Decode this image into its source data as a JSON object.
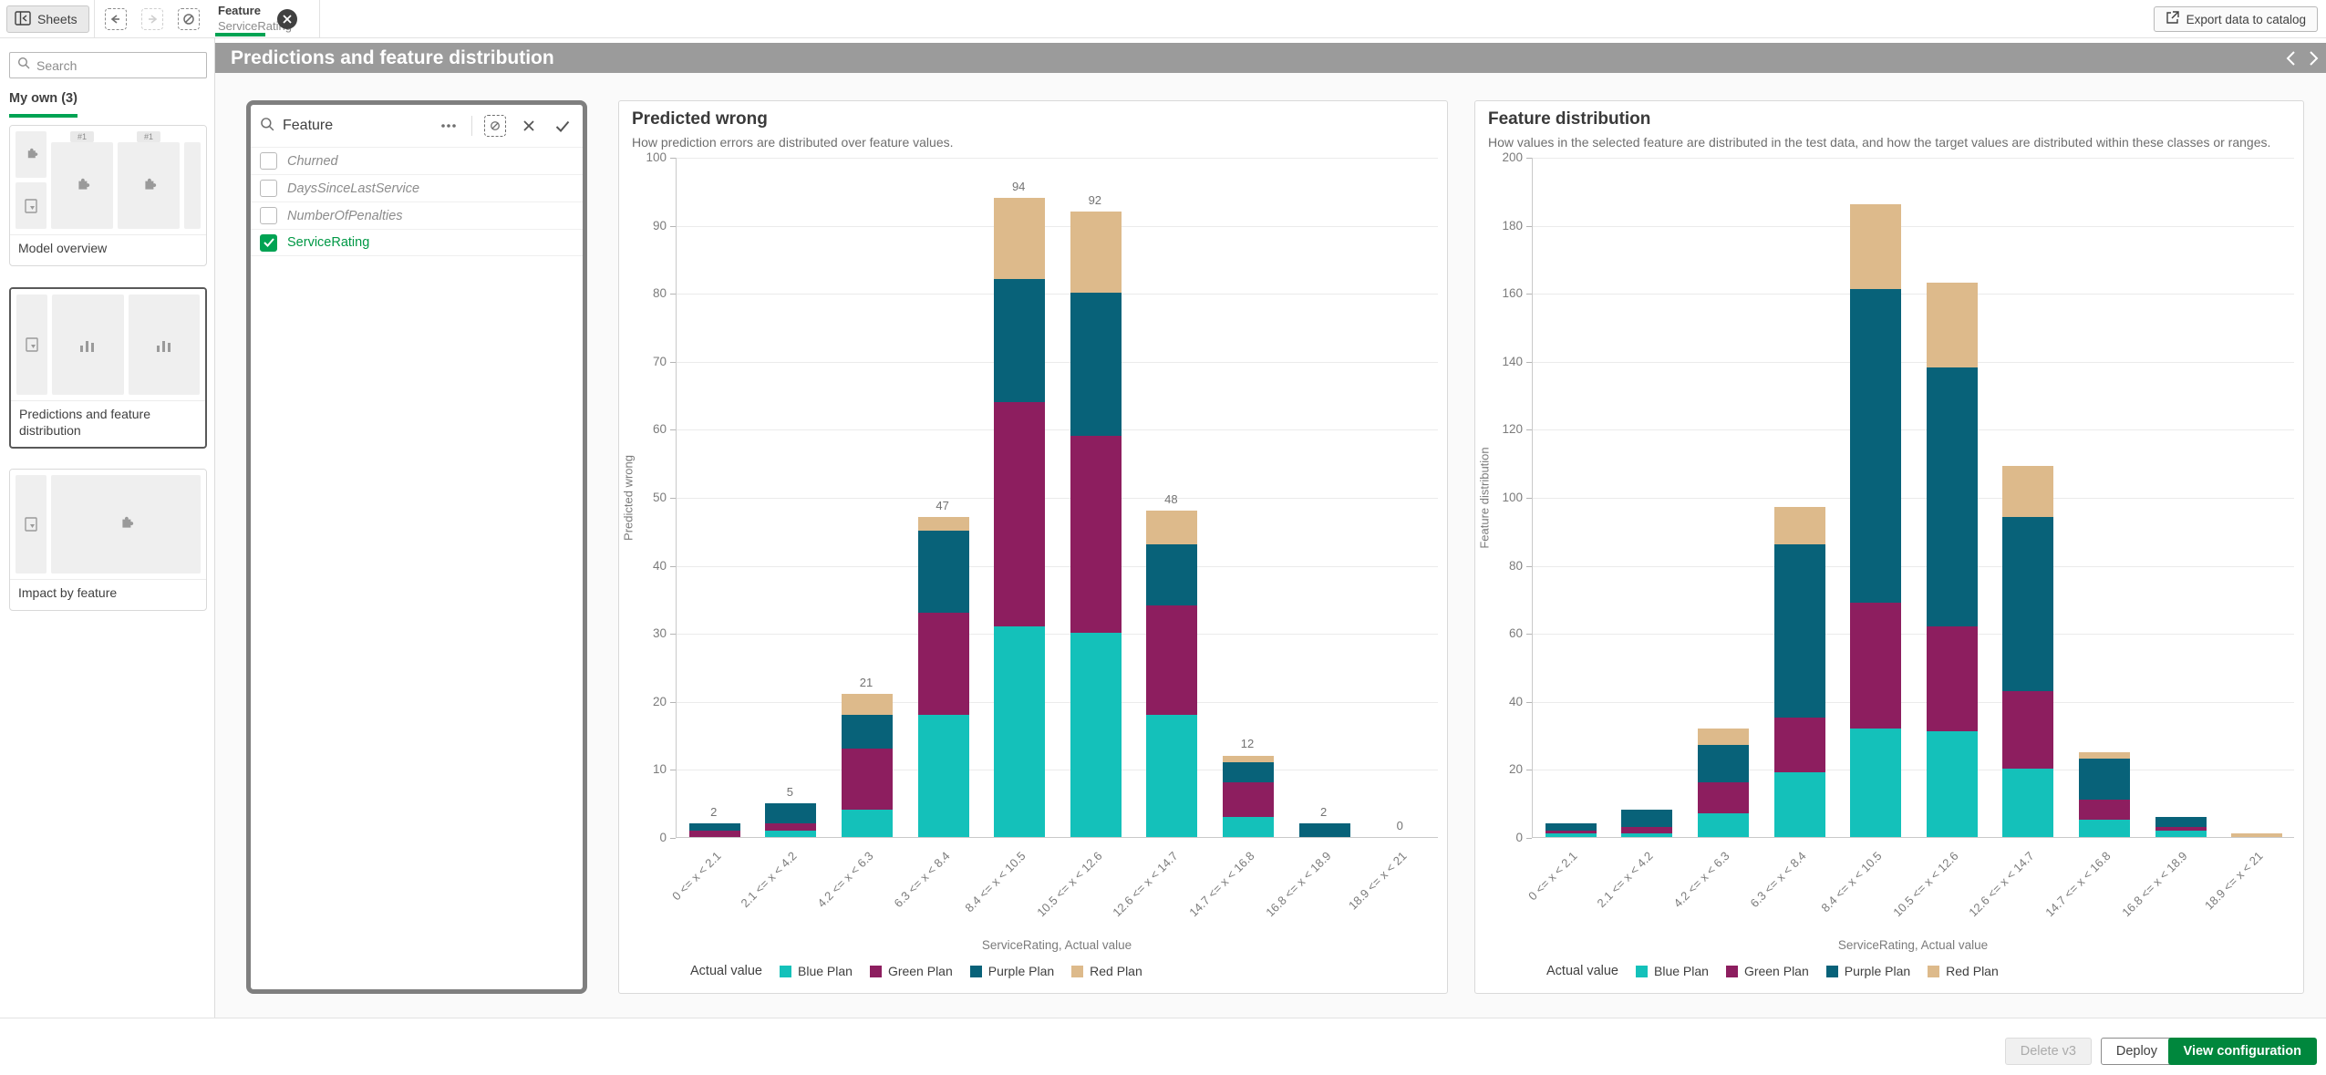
{
  "topbar": {
    "sheets_label": "Sheets",
    "filter_chip": {
      "field": "Feature",
      "value": "ServiceRating"
    },
    "export_button": "Export data to catalog"
  },
  "title_bar": {
    "title": "Predictions and feature distribution"
  },
  "sidebar": {
    "search_placeholder": "Search",
    "section_label": "My own (3)",
    "thumb_badge": "#1",
    "sheets": [
      {
        "label": "Model overview",
        "selected": false
      },
      {
        "label": "Predictions and feature distribution",
        "selected": true
      },
      {
        "label": "Impact by feature",
        "selected": false
      }
    ]
  },
  "filter_panel": {
    "title": "Feature",
    "items": [
      {
        "label": "Churned",
        "checked": false
      },
      {
        "label": "DaysSinceLastService",
        "checked": false
      },
      {
        "label": "NumberOfPenalties",
        "checked": false
      },
      {
        "label": "ServiceRating",
        "checked": true
      }
    ]
  },
  "footer": {
    "delete_label": "Delete v3",
    "deploy_label": "Deploy",
    "view_config_label": "View configuration"
  },
  "colors": {
    "accent_green": "#009845",
    "selection_green": "#00a353",
    "primary_button_green": "#00873d",
    "titlebar_gray": "#9b9b9b",
    "blue_plan": "#14c1ba",
    "green_plan": "#8d1e5f",
    "purple_plan": "#086279",
    "red_plan": "#ddba8b"
  },
  "chart_data": [
    {
      "type": "bar",
      "stacked": true,
      "title": "Predicted wrong",
      "subtitle": "How prediction errors are distributed over feature values.",
      "ylabel": "Predicted wrong",
      "xlabel": "ServiceRating, Actual value",
      "legend_title": "Actual value",
      "legend_position": "bottom",
      "grid": true,
      "ylim": [
        0,
        100
      ],
      "ytick_step": 10,
      "bar_totals_shown": true,
      "totals": [
        2,
        5,
        21,
        47,
        94,
        92,
        48,
        12,
        2,
        0
      ],
      "categories": [
        "0 <= x < 2.1",
        "2.1 <= x < 4.2",
        "4.2 <= x < 6.3",
        "6.3 <= x < 8.4",
        "8.4 <= x < 10.5",
        "10.5 <= x < 12.6",
        "12.6 <= x < 14.7",
        "14.7 <= x < 16.8",
        "16.8 <= x < 18.9",
        "18.9 <= x < 21"
      ],
      "series": [
        {
          "name": "Blue Plan",
          "color": "#14c1ba",
          "values": [
            0,
            1,
            4,
            18,
            31,
            30,
            18,
            3,
            0,
            0
          ]
        },
        {
          "name": "Green Plan",
          "color": "#8d1e5f",
          "values": [
            1,
            1,
            9,
            15,
            33,
            29,
            16,
            5,
            0,
            0
          ]
        },
        {
          "name": "Purple Plan",
          "color": "#086279",
          "values": [
            1,
            3,
            5,
            12,
            18,
            21,
            9,
            3,
            2,
            0
          ]
        },
        {
          "name": "Red Plan",
          "color": "#ddba8b",
          "values": [
            0,
            0,
            3,
            2,
            12,
            12,
            5,
            1,
            0,
            0
          ]
        }
      ]
    },
    {
      "type": "bar",
      "stacked": true,
      "title": "Feature distribution",
      "subtitle": "How values in the selected feature are distributed in the test data, and how the target values are distributed within these classes or ranges.",
      "ylabel": "Feature distribution",
      "xlabel": "ServiceRating, Actual value",
      "legend_title": "Actual value",
      "legend_position": "bottom",
      "grid": true,
      "ylim": [
        0,
        200
      ],
      "ytick_step": 20,
      "bar_totals_shown": false,
      "totals": [
        4,
        8,
        32,
        97,
        186,
        163,
        109,
        25,
        6,
        1
      ],
      "categories": [
        "0 <= x < 2.1",
        "2.1 <= x < 4.2",
        "4.2 <= x < 6.3",
        "6.3 <= x < 8.4",
        "8.4 <= x < 10.5",
        "10.5 <= x < 12.6",
        "12.6 <= x < 14.7",
        "14.7 <= x < 16.8",
        "16.8 <= x < 18.9",
        "18.9 <= x < 21"
      ],
      "series": [
        {
          "name": "Blue Plan",
          "color": "#14c1ba",
          "values": [
            1,
            1,
            7,
            19,
            32,
            31,
            20,
            5,
            2,
            0
          ]
        },
        {
          "name": "Green Plan",
          "color": "#8d1e5f",
          "values": [
            1,
            2,
            9,
            16,
            37,
            31,
            23,
            6,
            1,
            0
          ]
        },
        {
          "name": "Purple Plan",
          "color": "#086279",
          "values": [
            2,
            5,
            11,
            51,
            92,
            76,
            51,
            12,
            3,
            0
          ]
        },
        {
          "name": "Red Plan",
          "color": "#ddba8b",
          "values": [
            0,
            0,
            5,
            11,
            25,
            25,
            15,
            2,
            0,
            1
          ]
        }
      ]
    }
  ]
}
